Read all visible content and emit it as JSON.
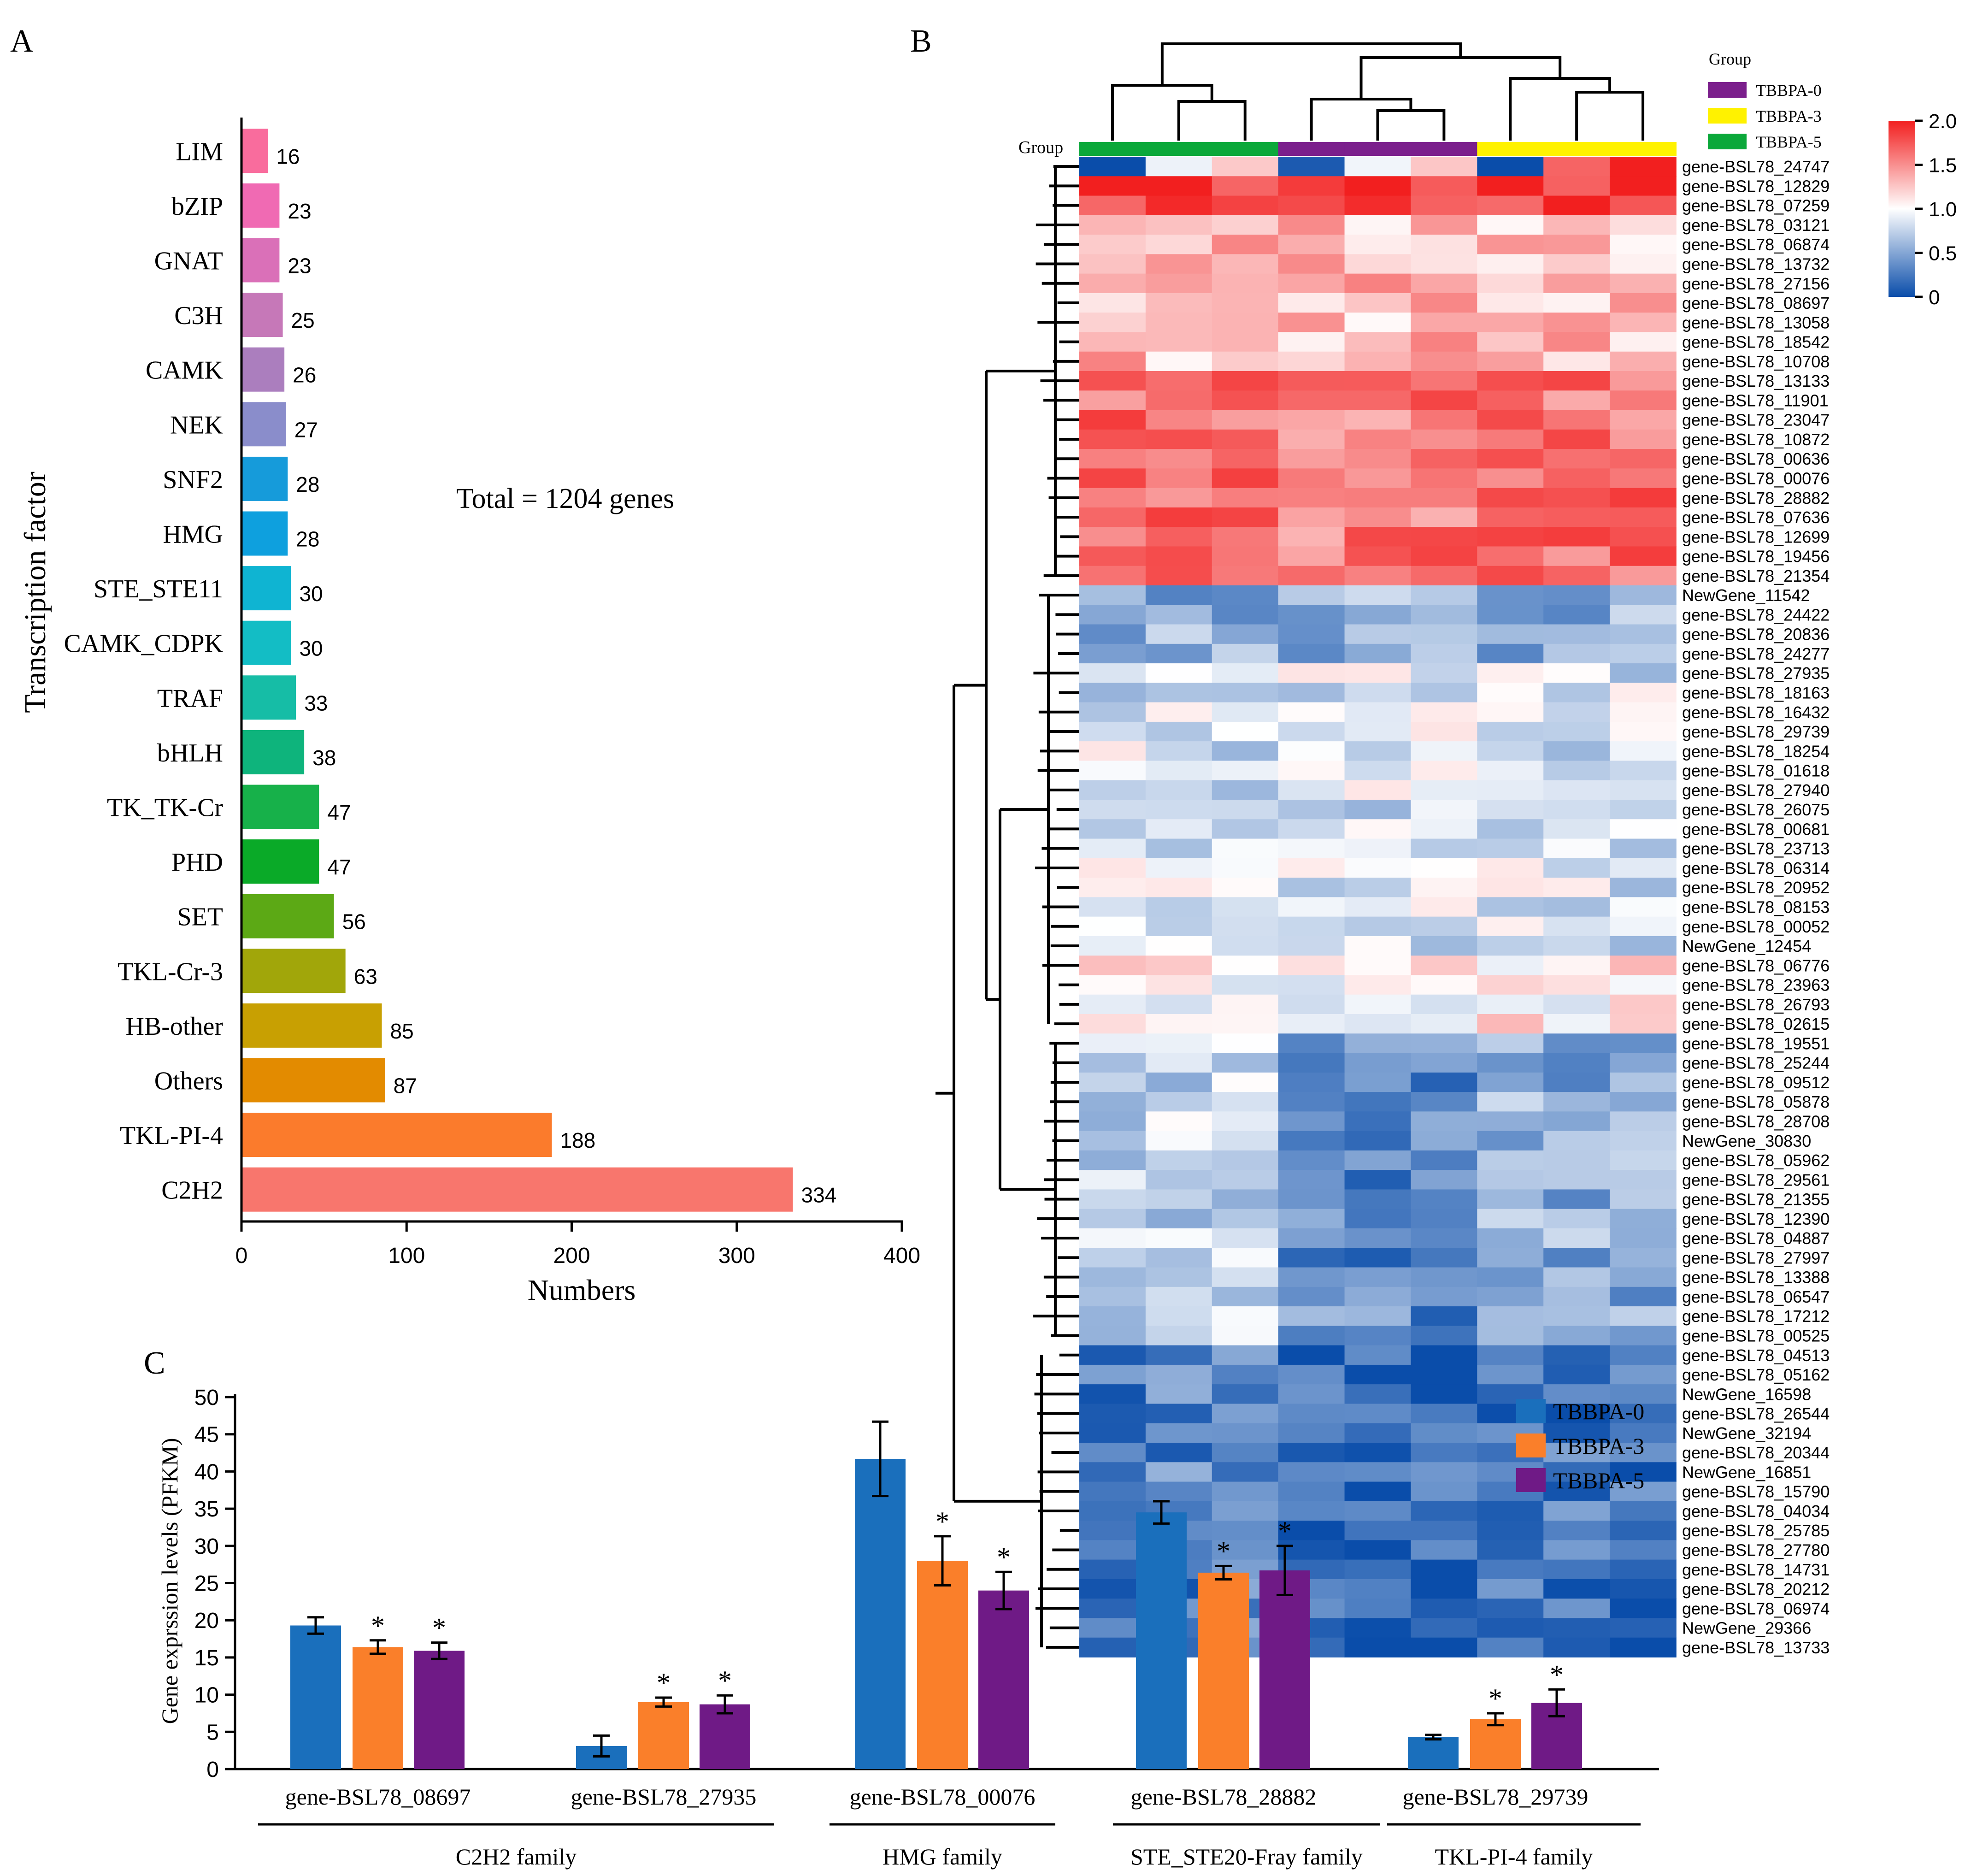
{
  "panels": {
    "a": "A",
    "b": "B",
    "c": "C"
  },
  "chart_data": [
    {
      "type": "bar",
      "orientation": "horizontal",
      "panel": "A",
      "categories": [
        "LIM",
        "bZIP",
        "GNAT",
        "C3H",
        "CAMK",
        "NEK",
        "SNF2",
        "HMG",
        "STE_STE11",
        "CAMK_CDPK",
        "TRAF",
        "bHLH",
        "TK_TK-Cr",
        "PHD",
        "SET",
        "TKL-Cr-3",
        "HB-other",
        "Others",
        "TKL-PI-4",
        "C2H2"
      ],
      "values": [
        16,
        23,
        23,
        25,
        26,
        27,
        28,
        28,
        30,
        30,
        33,
        38,
        47,
        47,
        56,
        63,
        85,
        87,
        188,
        334
      ],
      "colors": [
        "#F96C9D",
        "#F06AB3",
        "#DA70B8",
        "#C678B8",
        "#AB7EBE",
        "#8A8DCB",
        "#169BDA",
        "#0EA0DE",
        "#0FB4D2",
        "#13BDC5",
        "#16BDA6",
        "#0EB47C",
        "#17B14A",
        "#0AAA28",
        "#5CA915",
        "#A1A60A",
        "#C8A002",
        "#E38B00",
        "#FB7B2C",
        "#F8766D"
      ],
      "title": "Total = 1204 genes",
      "xlabel": "Numbers",
      "ylabel": "Transcription factor",
      "xlim": [
        0,
        400
      ],
      "xticks": [
        0,
        100,
        200,
        300,
        400
      ]
    },
    {
      "type": "heatmap",
      "panel": "B",
      "group_label": "Group",
      "legend_title": "Group",
      "groups": [
        {
          "name": "TBBPA-0",
          "color": "#7B1F8C"
        },
        {
          "name": "TBBPA-3",
          "color": "#FFF200"
        },
        {
          "name": "TBBPA-5",
          "color": "#0BA83A"
        }
      ],
      "column_groups": [
        "TBBPA-5",
        "TBBPA-5",
        "TBBPA-5",
        "TBBPA-0",
        "TBBPA-0",
        "TBBPA-0",
        "TBBPA-3",
        "TBBPA-3",
        "TBBPA-3"
      ],
      "color_scale": {
        "min": 0,
        "max": 2.0,
        "ticks": [
          "2.0",
          "1.5",
          "1.0",
          "0.5",
          "0"
        ],
        "low": "#0A4DAA",
        "mid": "#FFFFFF",
        "high": "#F21F1F"
      },
      "rows": [
        "gene-BSL78_24747",
        "gene-BSL78_12829",
        "gene-BSL78_07259",
        "gene-BSL78_03121",
        "gene-BSL78_06874",
        "gene-BSL78_13732",
        "gene-BSL78_27156",
        "gene-BSL78_08697",
        "gene-BSL78_13058",
        "gene-BSL78_18542",
        "gene-BSL78_10708",
        "gene-BSL78_13133",
        "gene-BSL78_11901",
        "gene-BSL78_23047",
        "gene-BSL78_10872",
        "gene-BSL78_00636",
        "gene-BSL78_00076",
        "gene-BSL78_28882",
        "gene-BSL78_07636",
        "gene-BSL78_12699",
        "gene-BSL78_19456",
        "gene-BSL78_21354",
        "NewGene_11542",
        "gene-BSL78_24422",
        "gene-BSL78_20836",
        "gene-BSL78_24277",
        "gene-BSL78_27935",
        "gene-BSL78_18163",
        "gene-BSL78_16432",
        "gene-BSL78_29739",
        "gene-BSL78_18254",
        "gene-BSL78_01618",
        "gene-BSL78_27940",
        "gene-BSL78_26075",
        "gene-BSL78_00681",
        "gene-BSL78_23713",
        "gene-BSL78_06314",
        "gene-BSL78_20952",
        "gene-BSL78_08153",
        "gene-BSL78_00052",
        "NewGene_12454",
        "gene-BSL78_06776",
        "gene-BSL78_23963",
        "gene-BSL78_26793",
        "gene-BSL78_02615",
        "gene-BSL78_19551",
        "gene-BSL78_25244",
        "gene-BSL78_09512",
        "gene-BSL78_05878",
        "gene-BSL78_28708",
        "NewGene_30830",
        "gene-BSL78_05962",
        "gene-BSL78_29561",
        "gene-BSL78_21355",
        "gene-BSL78_12390",
        "gene-BSL78_04887",
        "gene-BSL78_27997",
        "gene-BSL78_13388",
        "gene-BSL78_06547",
        "gene-BSL78_17212",
        "gene-BSL78_00525",
        "gene-BSL78_04513",
        "gene-BSL78_05162",
        "NewGene_16598",
        "gene-BSL78_26544",
        "NewGene_32194",
        "gene-BSL78_20344",
        "NewGene_16851",
        "gene-BSL78_15790",
        "gene-BSL78_04034",
        "gene-BSL78_25785",
        "gene-BSL78_27780",
        "gene-BSL78_14731",
        "gene-BSL78_20212",
        "gene-BSL78_06974",
        "NewGene_29366",
        "gene-BSL78_13733"
      ]
    },
    {
      "type": "bar",
      "panel": "C",
      "ylabel": "Gene exprssion levels (PFKM)",
      "ylim": [
        0,
        50
      ],
      "yticks": [
        0,
        5,
        10,
        15,
        20,
        25,
        30,
        35,
        40,
        45,
        50
      ],
      "categories": [
        "gene-BSL78_08697",
        "gene-BSL78_27935",
        "gene-BSL78_00076",
        "gene-BSL78_28882",
        "gene-BSL78_29739"
      ],
      "families": [
        {
          "name": "C2H2 family",
          "span": [
            0,
            1
          ]
        },
        {
          "name": "HMG family",
          "span": [
            2,
            2
          ]
        },
        {
          "name": "STE_STE20-Fray family",
          "span": [
            3,
            3
          ]
        },
        {
          "name": "TKL-PI-4 family",
          "span": [
            4,
            4
          ]
        }
      ],
      "significance_mark": "*",
      "series": [
        {
          "name": "TBBPA-0",
          "color": "#1A6FBC",
          "values": [
            19.3,
            3.1,
            41.7,
            34.5,
            4.3
          ],
          "errors": [
            1.1,
            1.4,
            5.0,
            1.5,
            0.3
          ],
          "significant": [
            false,
            false,
            false,
            false,
            false
          ]
        },
        {
          "name": "TBBPA-3",
          "color": "#FA7F2A",
          "values": [
            16.4,
            9.0,
            28.0,
            26.4,
            6.7
          ],
          "errors": [
            0.9,
            0.6,
            3.3,
            0.9,
            0.8
          ],
          "significant": [
            true,
            true,
            true,
            true,
            true
          ]
        },
        {
          "name": "TBBPA-5",
          "color": "#6F1A86",
          "values": [
            15.9,
            8.7,
            24.0,
            26.7,
            8.9
          ],
          "errors": [
            1.1,
            1.2,
            2.5,
            3.3,
            1.8
          ],
          "significant": [
            true,
            true,
            true,
            true,
            true
          ]
        }
      ]
    }
  ]
}
